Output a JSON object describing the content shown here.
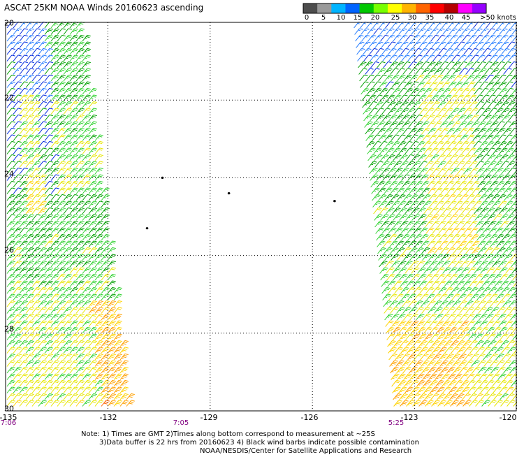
{
  "title": "ASCAT 25KM NOAA Winds 20160623 ascending",
  "colorbar": {
    "labels": [
      "0",
      "5",
      "10",
      "15",
      "20",
      "25",
      "30",
      "35",
      "40",
      "45",
      ">50 knots"
    ],
    "colors": [
      "#4d4d4d",
      "#9a9a9a",
      "#00b4ff",
      "#0064ff",
      "#00c800",
      "#78ff00",
      "#ffff00",
      "#ffb400",
      "#ff6400",
      "#ff0000",
      "#b40000",
      "#ff00ff",
      "#9600ff"
    ]
  },
  "axes": {
    "x_ticks": [
      "-135",
      "-132",
      "-129",
      "-126",
      "-123",
      "-120"
    ],
    "y_ticks": [
      "20",
      "22",
      "24",
      "26",
      "28",
      "30"
    ],
    "grid": true,
    "grid_style": "dotted"
  },
  "pass_times": [
    "7:06",
    "7:05",
    "5:25"
  ],
  "notes": {
    "line1": "Note: 1) Times are GMT 2)Times along bottom correspond to measurement at ~25S",
    "line2": "3)Data buffer is 22 hrs from 20160623 4) Black wind barbs indicate possible contamination",
    "line3": "NOAA/NESDIS/Center for Satellite Applications and Research"
  },
  "map": {
    "lon_range": [
      -135,
      -120
    ],
    "lat_range": [
      20,
      30
    ],
    "swaths": [
      {
        "name": "west-swath",
        "lon_top_right": -132.8,
        "lon_bottom_right": -131.4,
        "dominant_speed_knots_north": 12,
        "dominant_speed_knots_south": 22
      },
      {
        "name": "east-swath",
        "lon_top_left": -124.8,
        "lon_bottom_left": -123.6,
        "dominant_speed_knots_north": 14,
        "dominant_speed_knots_south": 22
      }
    ],
    "islands": [
      {
        "lon": -130.4,
        "lat": 24.0
      },
      {
        "lon": -128.45,
        "lat": 24.4
      },
      {
        "lon": -125.35,
        "lat": 24.6
      },
      {
        "lon": -130.85,
        "lat": 25.3
      }
    ]
  }
}
